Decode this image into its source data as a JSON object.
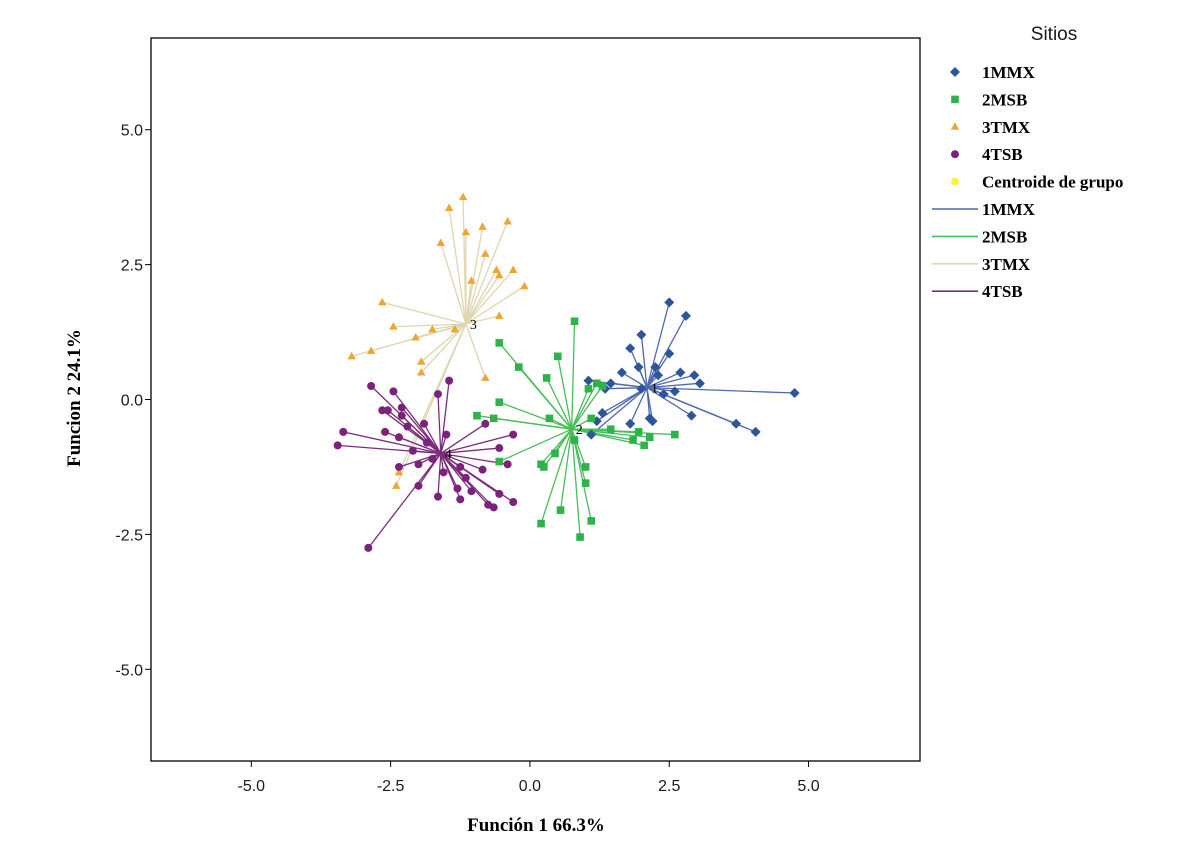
{
  "chart_data": {
    "type": "scatter",
    "title": "",
    "xlabel": "Función 1  66.3%",
    "ylabel": "Funcion 2  24.1%",
    "xlim": [
      -6.8,
      7.0
    ],
    "ylim": [
      -6.7,
      6.7
    ],
    "xticks": [
      -5.0,
      -2.5,
      0.0,
      2.5,
      5.0
    ],
    "yticks": [
      -5.0,
      -2.5,
      0.0,
      2.5,
      5.0
    ],
    "xtick_labels": [
      "-5.0",
      "-2.5",
      "0.0",
      "2.5",
      "5.0"
    ],
    "ytick_labels": [
      "-5.0",
      "-2.5",
      "0.0",
      "2.5",
      "5.0"
    ],
    "grid": false,
    "legend_position": "right",
    "legend_title": "Sitios",
    "legend_items": [
      {
        "label": "1MMX",
        "kind": "marker",
        "marker": "diamond",
        "color": "#2E5597"
      },
      {
        "label": "2MSB",
        "kind": "marker",
        "marker": "square",
        "color": "#2DB34A"
      },
      {
        "label": "3TMX",
        "kind": "marker",
        "marker": "triangle",
        "color": "#F0A433"
      },
      {
        "label": "4TSB",
        "kind": "marker",
        "marker": "circle",
        "color": "#7B237A"
      },
      {
        "label": "Centroide de grupo",
        "kind": "marker",
        "marker": "circle",
        "color": "#FFF23C"
      },
      {
        "label": "1MMX",
        "kind": "line",
        "color": "#4E69B0"
      },
      {
        "label": "2MSB",
        "kind": "line",
        "color": "#46BE5A"
      },
      {
        "label": "3TMX",
        "kind": "line",
        "color": "#DDD6B0"
      },
      {
        "label": "4TSB",
        "kind": "line",
        "color": "#7B2D7C"
      }
    ],
    "series": [
      {
        "name": "1MMX",
        "marker": "diamond",
        "color": "#2E5597",
        "line_color": "#4E69B0",
        "centroid_label": "1",
        "centroid": [
          2.1,
          0.22
        ],
        "points": [
          [
            2.5,
            1.8
          ],
          [
            2.8,
            1.55
          ],
          [
            2.0,
            1.2
          ],
          [
            1.8,
            0.95
          ],
          [
            2.5,
            0.85
          ],
          [
            1.95,
            0.6
          ],
          [
            2.25,
            0.6
          ],
          [
            1.65,
            0.5
          ],
          [
            2.7,
            0.5
          ],
          [
            2.3,
            0.45
          ],
          [
            2.95,
            0.45
          ],
          [
            3.05,
            0.3
          ],
          [
            1.45,
            0.3
          ],
          [
            1.35,
            0.2
          ],
          [
            2.0,
            0.2
          ],
          [
            2.6,
            0.15
          ],
          [
            2.4,
            0.1
          ],
          [
            4.75,
            0.12
          ],
          [
            2.9,
            -0.3
          ],
          [
            2.15,
            -0.35
          ],
          [
            2.2,
            -0.4
          ],
          [
            1.8,
            -0.45
          ],
          [
            1.3,
            -0.25
          ],
          [
            1.2,
            -0.4
          ],
          [
            1.1,
            -0.65
          ],
          [
            3.7,
            -0.45
          ],
          [
            4.05,
            -0.6
          ],
          [
            1.05,
            0.35
          ]
        ]
      },
      {
        "name": "2MSB",
        "marker": "square",
        "color": "#2DB34A",
        "line_color": "#46BE5A",
        "centroid_label": "2",
        "centroid": [
          0.75,
          -0.55
        ],
        "points": [
          [
            0.8,
            1.45
          ],
          [
            -0.55,
            1.05
          ],
          [
            0.5,
            0.8
          ],
          [
            -0.2,
            0.6
          ],
          [
            0.3,
            0.4
          ],
          [
            1.2,
            0.3
          ],
          [
            1.3,
            0.25
          ],
          [
            1.05,
            0.2
          ],
          [
            -0.95,
            -0.3
          ],
          [
            -0.65,
            -0.35
          ],
          [
            -0.55,
            -0.05
          ],
          [
            0.35,
            -0.35
          ],
          [
            1.1,
            -0.35
          ],
          [
            1.45,
            -0.55
          ],
          [
            1.95,
            -0.6
          ],
          [
            2.15,
            -0.7
          ],
          [
            2.6,
            -0.65
          ],
          [
            2.05,
            -0.85
          ],
          [
            1.85,
            -0.75
          ],
          [
            -0.55,
            -1.15
          ],
          [
            0.2,
            -1.2
          ],
          [
            0.25,
            -1.25
          ],
          [
            0.45,
            -1.0
          ],
          [
            1.0,
            -1.25
          ],
          [
            1.0,
            -1.55
          ],
          [
            0.55,
            -2.05
          ],
          [
            0.2,
            -2.3
          ],
          [
            0.9,
            -2.55
          ],
          [
            1.1,
            -2.25
          ],
          [
            0.8,
            -0.75
          ]
        ]
      },
      {
        "name": "3TMX",
        "marker": "triangle",
        "color": "#F0A433",
        "line_color": "#DDD6B0",
        "centroid_label": "3",
        "centroid": [
          -1.15,
          1.4
        ],
        "points": [
          [
            -1.2,
            3.75
          ],
          [
            -1.45,
            3.55
          ],
          [
            -1.15,
            3.1
          ],
          [
            -0.85,
            3.2
          ],
          [
            -0.4,
            3.3
          ],
          [
            -1.6,
            2.9
          ],
          [
            -0.8,
            2.7
          ],
          [
            -0.6,
            2.4
          ],
          [
            -0.55,
            2.3
          ],
          [
            -0.3,
            2.4
          ],
          [
            -1.05,
            2.2
          ],
          [
            -0.1,
            2.1
          ],
          [
            -2.65,
            1.8
          ],
          [
            -1.75,
            1.3
          ],
          [
            -2.45,
            1.35
          ],
          [
            -0.55,
            1.55
          ],
          [
            -2.05,
            1.15
          ],
          [
            -1.35,
            1.3
          ],
          [
            -3.2,
            0.8
          ],
          [
            -2.85,
            0.9
          ],
          [
            -1.95,
            0.7
          ],
          [
            -1.95,
            0.5
          ],
          [
            -0.8,
            0.4
          ],
          [
            -2.35,
            -1.35
          ],
          [
            -2.4,
            -1.6
          ]
        ]
      },
      {
        "name": "4TSB",
        "marker": "circle",
        "color": "#7B237A",
        "line_color": "#7B2D7C",
        "centroid_label": "4",
        "centroid": [
          -1.6,
          -1.0
        ],
        "points": [
          [
            -2.85,
            0.25
          ],
          [
            -1.45,
            0.35
          ],
          [
            -2.45,
            0.15
          ],
          [
            -1.65,
            0.1
          ],
          [
            -2.3,
            -0.15
          ],
          [
            -2.55,
            -0.2
          ],
          [
            -2.65,
            -0.2
          ],
          [
            -2.3,
            -0.3
          ],
          [
            -1.9,
            -0.45
          ],
          [
            -2.2,
            -0.5
          ],
          [
            -0.8,
            -0.45
          ],
          [
            -2.6,
            -0.6
          ],
          [
            -2.35,
            -0.7
          ],
          [
            -1.5,
            -0.65
          ],
          [
            -1.85,
            -0.8
          ],
          [
            -3.35,
            -0.6
          ],
          [
            -3.45,
            -0.85
          ],
          [
            -0.3,
            -0.65
          ],
          [
            -0.55,
            -0.9
          ],
          [
            -2.1,
            -0.95
          ],
          [
            -1.75,
            -1.1
          ],
          [
            -2.0,
            -1.2
          ],
          [
            -2.35,
            -1.25
          ],
          [
            -1.25,
            -1.25
          ],
          [
            -0.85,
            -1.3
          ],
          [
            -1.55,
            -1.35
          ],
          [
            -0.4,
            -1.2
          ],
          [
            -1.15,
            -1.45
          ],
          [
            -1.3,
            -1.65
          ],
          [
            -2.0,
            -1.6
          ],
          [
            -1.25,
            -1.85
          ],
          [
            -1.05,
            -1.7
          ],
          [
            -1.65,
            -1.8
          ],
          [
            -0.55,
            -1.75
          ],
          [
            -0.3,
            -1.9
          ],
          [
            -0.75,
            -1.95
          ],
          [
            -0.65,
            -2.0
          ],
          [
            -2.9,
            -2.75
          ]
        ]
      }
    ]
  }
}
